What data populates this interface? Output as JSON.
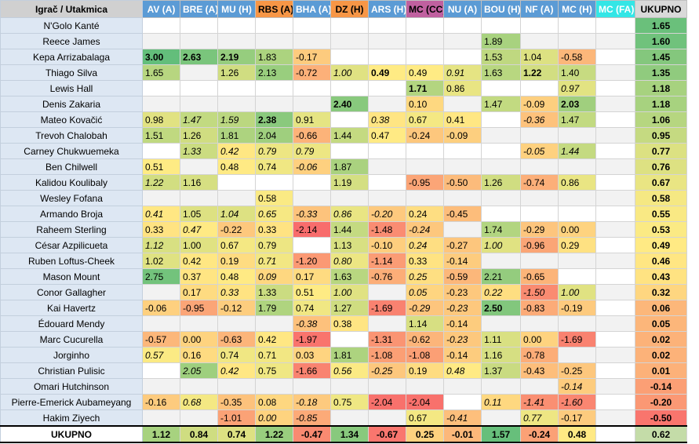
{
  "header": {
    "player_col": "Igrač / Utakmica",
    "total_col": "UKUPNO",
    "matches": [
      {
        "label": "AV (A)",
        "bg": "#5b9bd5",
        "fg": "#ffffff"
      },
      {
        "label": "BRE (A)",
        "bg": "#5b9bd5",
        "fg": "#ffffff"
      },
      {
        "label": "MU (H)",
        "bg": "#5b9bd5",
        "fg": "#ffffff"
      },
      {
        "label": "RBS (A)",
        "bg": "#f79646",
        "fg": "#000000"
      },
      {
        "label": "BHA (A)",
        "bg": "#5b9bd5",
        "fg": "#ffffff"
      },
      {
        "label": "DZ (H)",
        "bg": "#f79646",
        "fg": "#000000"
      },
      {
        "label": "ARS (H)",
        "bg": "#5b9bd5",
        "fg": "#ffffff"
      },
      {
        "label": "MC (CC)",
        "bg": "#c0609f",
        "fg": "#000000"
      },
      {
        "label": "NU (A)",
        "bg": "#5b9bd5",
        "fg": "#ffffff"
      },
      {
        "label": "BOU (H)",
        "bg": "#5b9bd5",
        "fg": "#ffffff"
      },
      {
        "label": "NF (A)",
        "bg": "#5b9bd5",
        "fg": "#ffffff"
      },
      {
        "label": "MC (H)",
        "bg": "#5b9bd5",
        "fg": "#ffffff"
      },
      {
        "label": "MC (FA)",
        "bg": "#33e6e6",
        "fg": "#ffffff"
      }
    ]
  },
  "rows": [
    {
      "name": "N'Golo Kanté",
      "total": "1.65",
      "cells": [
        "",
        "",
        "",
        "",
        "",
        "",
        "",
        "",
        "",
        "",
        "",
        "",
        ""
      ]
    },
    {
      "name": "Reece James",
      "total": "1.60",
      "cells": [
        "",
        "",
        "",
        "",
        "",
        "",
        "",
        "",
        "",
        "1.89",
        "",
        "",
        ""
      ]
    },
    {
      "name": "Kepa Arrizabalaga",
      "total": "1.45",
      "cells": [
        "**3.00",
        "**2.63",
        "**2.19",
        "1.83",
        "-0.17",
        "",
        "",
        "",
        "",
        "1.53",
        "1.04",
        "-0.58",
        ""
      ]
    },
    {
      "name": "Thiago Silva",
      "total": "1.35",
      "cells": [
        "1.65",
        "",
        "1.26",
        "2.13",
        "-0.72",
        "_1.00",
        "**0.49",
        "0.49",
        "_0.91",
        "1.63",
        "**1.22",
        "1.40",
        ""
      ]
    },
    {
      "name": "Lewis Hall",
      "total": "1.18",
      "cells": [
        "",
        "",
        "",
        "",
        "",
        "",
        "",
        "**1.71",
        "0.86",
        "",
        "",
        "_0.97",
        ""
      ]
    },
    {
      "name": "Denis Zakaria",
      "total": "1.18",
      "cells": [
        "",
        "",
        "",
        "",
        "",
        "**2.40",
        "",
        "0.10",
        "",
        "1.47",
        "-0.09",
        "**2.03",
        ""
      ]
    },
    {
      "name": "Mateo Kovačić",
      "total": "1.06",
      "cells": [
        "0.98",
        "_1.47",
        "_1.59",
        "**2.38",
        "0.91",
        "",
        "_0.38",
        "0.67",
        "0.41",
        "",
        "_-0.36",
        "1.47",
        ""
      ]
    },
    {
      "name": "Trevoh Chalobah",
      "total": "0.95",
      "cells": [
        "1.51",
        "1.26",
        "1.81",
        "2.04",
        "-0.66",
        "1.44",
        "0.47",
        "-0.24",
        "-0.09",
        "",
        "",
        "",
        ""
      ]
    },
    {
      "name": "Carney Chukwuemeka",
      "total": "0.77",
      "cells": [
        "",
        "_1.33",
        "_0.42",
        "_0.79",
        "_0.79",
        "",
        "",
        "",
        "",
        "",
        "_-0.05",
        "_1.44",
        ""
      ]
    },
    {
      "name": "Ben Chilwell",
      "total": "0.76",
      "cells": [
        "0.51",
        "",
        "0.48",
        "0.74",
        "_-0.06",
        "1.87",
        "",
        "",
        "",
        "",
        "",
        "",
        ""
      ]
    },
    {
      "name": "Kalidou Koulibaly",
      "total": "0.67",
      "cells": [
        "_1.22",
        "1.16",
        "",
        "",
        "",
        "1.19",
        "",
        "-0.95",
        "-0.50",
        "1.26",
        "-0.74",
        "0.86",
        ""
      ]
    },
    {
      "name": "Wesley Fofana",
      "total": "0.58",
      "cells": [
        "",
        "",
        "",
        "0.58",
        "",
        "",
        "",
        "",
        "",
        "",
        "",
        "",
        ""
      ]
    },
    {
      "name": "Armando Broja",
      "total": "0.55",
      "cells": [
        "_0.41",
        "1.05",
        "_1.04",
        "_0.65",
        "_-0.33",
        "_0.86",
        "_-0.20",
        "0.24",
        "-0.45",
        "",
        "",
        "",
        ""
      ]
    },
    {
      "name": "Raheem Sterling",
      "total": "0.53",
      "cells": [
        "0.33",
        "_0.47",
        "-0.22",
        "0.33",
        "-2.14",
        "1.44",
        "-1.48",
        "_-0.24",
        "",
        "1.74",
        "-0.29",
        "0.00",
        ""
      ]
    },
    {
      "name": "César Azpilicueta",
      "total": "0.49",
      "cells": [
        "_1.12",
        "1.00",
        "0.67",
        "0.79",
        "",
        "1.13",
        "-0.10",
        "_0.24",
        "-0.27",
        "_1.00",
        "-0.96",
        "0.29",
        ""
      ]
    },
    {
      "name": "Ruben Loftus-Cheek",
      "total": "0.46",
      "cells": [
        "1.02",
        "0.42",
        "0.19",
        "_0.71",
        "-1.20",
        "_0.80",
        "-1.14",
        "0.33",
        "-0.14",
        "",
        "",
        "",
        ""
      ]
    },
    {
      "name": "Mason Mount",
      "total": "0.43",
      "cells": [
        "2.75",
        "0.37",
        "0.48",
        "_0.09",
        "0.17",
        "1.63",
        "-0.76",
        "_0.25",
        "-0.59",
        "2.21",
        "-0.65",
        "",
        ""
      ]
    },
    {
      "name": "Conor Gallagher",
      "total": "0.32",
      "cells": [
        "",
        "0.17",
        "_0.33",
        "1.33",
        "0.51",
        "_1.00",
        "",
        "_0.05",
        "-0.23",
        "_0.22",
        "_-1.50",
        "_1.00",
        ""
      ]
    },
    {
      "name": "Kai Havertz",
      "total": "0.06",
      "cells": [
        "-0.06",
        "-0.95",
        "-0.12",
        "1.79",
        "0.74",
        "1.27",
        "-1.69",
        "_-0.29",
        "_-0.23",
        "**2.50",
        "-0.83",
        "-0.19",
        ""
      ]
    },
    {
      "name": "Édouard Mendy",
      "total": "0.05",
      "cells": [
        "",
        "",
        "",
        "",
        "_-0.38",
        "0.38",
        "",
        "1.14",
        "-0.14",
        "",
        "",
        "",
        ""
      ]
    },
    {
      "name": "Marc Cucurella",
      "total": "0.02",
      "cells": [
        "-0.57",
        "0.00",
        "-0.63",
        "0.42",
        "-1.97",
        "",
        "-1.31",
        "-0.62",
        "_-0.23",
        "1.11",
        "0.00",
        "-1.69",
        ""
      ]
    },
    {
      "name": "Jorginho",
      "total": "0.02",
      "cells": [
        "_0.57",
        "0.16",
        "0.74",
        "0.71",
        "0.03",
        "1.81",
        "-1.08",
        "-1.08",
        "-0.14",
        "1.16",
        "-0.78",
        "",
        ""
      ]
    },
    {
      "name": "Christian Pulisic",
      "total": "0.01",
      "cells": [
        "",
        "_2.05",
        "_0.42",
        "0.75",
        "-1.66",
        "_0.56",
        "_-0.25",
        "0.19",
        "_0.48",
        "1.37",
        "-0.43",
        "-0.25",
        ""
      ]
    },
    {
      "name": "Omari Hutchinson",
      "total": "-0.14",
      "cells": [
        "",
        "",
        "",
        "",
        "",
        "",
        "",
        "",
        "",
        "",
        "",
        "_-0.14",
        ""
      ]
    },
    {
      "name": "Pierre-Emerick Aubameyang",
      "total": "-0.20",
      "cells": [
        "-0.16",
        "_0.68",
        "-0.35",
        "0.08",
        "_-0.18",
        "0.75",
        "-2.04",
        "-2.04",
        "",
        "_0.11",
        "_-1.41",
        "_-1.60",
        ""
      ]
    },
    {
      "name": "Hakim Ziyech",
      "total": "-0.50",
      "cells": [
        "",
        "",
        "-1.01",
        "_0.00",
        "_-0.85",
        "",
        "",
        "0.67",
        "_-0.41",
        "",
        "_0.77",
        "-0.17",
        ""
      ]
    }
  ],
  "footer": {
    "name": "UKUPNO",
    "total": "0.62",
    "cells": [
      "1.12",
      "0.84",
      "0.74",
      "1.22",
      "-0.47",
      "1.34",
      "-0.67",
      "0.25",
      "-0.01",
      "1.57",
      "-0.24",
      "0.48",
      ""
    ]
  },
  "colors": {
    "empty_cell": "#ffffff",
    "empty_alt": "#f2f2f2",
    "scale_low": "#f8696b",
    "scale_mid": "#ffeb84",
    "scale_high": "#63be7b"
  }
}
